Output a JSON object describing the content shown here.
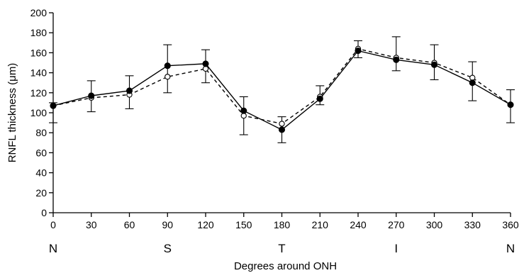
{
  "chart_data": {
    "type": "line",
    "xlabel": "Degrees around ONH",
    "ylabel": "RNFL thickness (μm)",
    "xlim": [
      0,
      360
    ],
    "ylim": [
      0,
      200
    ],
    "x_ticks": [
      0,
      30,
      60,
      90,
      120,
      150,
      180,
      210,
      240,
      270,
      300,
      330,
      360
    ],
    "y_ticks": [
      0,
      20,
      40,
      60,
      80,
      100,
      120,
      140,
      160,
      180,
      200
    ],
    "region_labels": [
      {
        "x": 0,
        "label": "N"
      },
      {
        "x": 90,
        "label": "S"
      },
      {
        "x": 180,
        "label": "T"
      },
      {
        "x": 270,
        "label": "I"
      },
      {
        "x": 360,
        "label": "N"
      }
    ],
    "grid": false,
    "legend": "none",
    "series": [
      {
        "marker": "filled-circle",
        "line_style": "solid",
        "color": "#000000",
        "x": [
          0,
          30,
          60,
          90,
          120,
          150,
          180,
          210,
          240,
          270,
          300,
          330,
          360
        ],
        "values": [
          107,
          117,
          122,
          147,
          149,
          102,
          83,
          114,
          162,
          153,
          148,
          130,
          108
        ],
        "error_low": [
          90,
          101,
          104,
          120,
          130,
          78,
          70,
          108,
          155,
          142,
          133,
          112,
          90
        ],
        "error_high": [
          110,
          132,
          137,
          168,
          163,
          116,
          96,
          127,
          172,
          176,
          168,
          151,
          123
        ]
      },
      {
        "marker": "open-circle",
        "line_style": "dashed",
        "color": "#000000",
        "x": [
          0,
          30,
          60,
          90,
          120,
          150,
          180,
          210,
          240,
          270,
          300,
          330,
          360
        ],
        "values": [
          107,
          115,
          118,
          136,
          144,
          97,
          89,
          116,
          164,
          155,
          150,
          135,
          108
        ]
      }
    ]
  }
}
